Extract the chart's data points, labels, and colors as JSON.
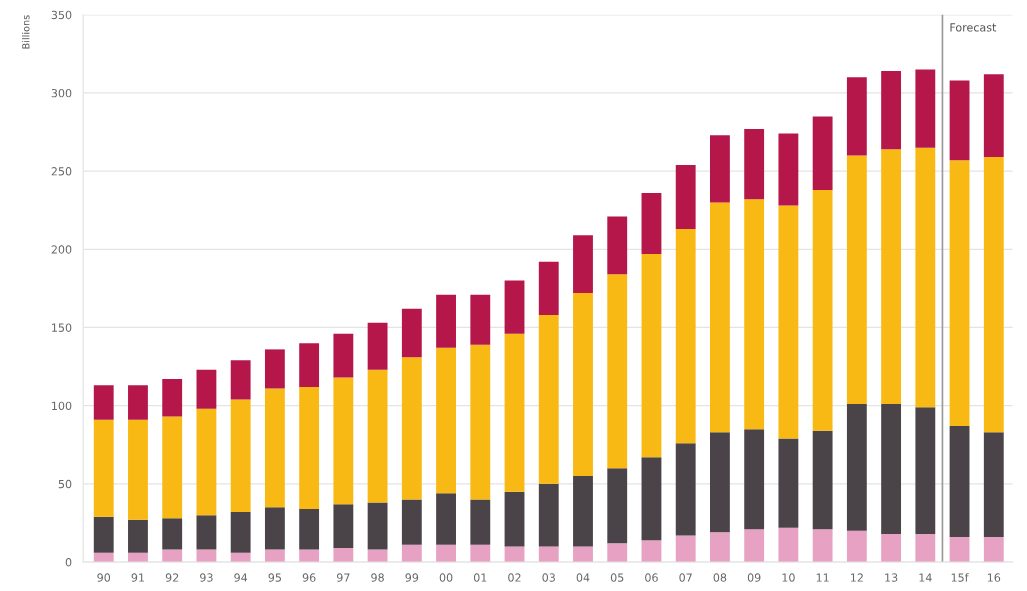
{
  "chart_data": {
    "type": "bar",
    "stacked": true,
    "ylabel": "Billions",
    "categories": [
      "90",
      "91",
      "92",
      "93",
      "94",
      "95",
      "96",
      "97",
      "98",
      "99",
      "00",
      "01",
      "02",
      "03",
      "04",
      "05",
      "06",
      "07",
      "08",
      "09",
      "10",
      "11",
      "12",
      "13",
      "14",
      "15f",
      "16"
    ],
    "series": [
      {
        "color": "#e6a1c3",
        "values": [
          6,
          6,
          8,
          8,
          6,
          8,
          8,
          9,
          8,
          11,
          11,
          11,
          10,
          10,
          10,
          12,
          14,
          17,
          19,
          21,
          22,
          21,
          20,
          18,
          18,
          16,
          16
        ]
      },
      {
        "color": "#4a4448",
        "values": [
          23,
          21,
          20,
          22,
          26,
          27,
          26,
          28,
          30,
          29,
          33,
          29,
          35,
          40,
          45,
          48,
          53,
          59,
          64,
          64,
          57,
          63,
          81,
          83,
          81,
          71,
          67
        ]
      },
      {
        "color": "#f9b914",
        "values": [
          62,
          64,
          65,
          68,
          72,
          76,
          78,
          81,
          85,
          91,
          93,
          99,
          101,
          108,
          117,
          124,
          130,
          137,
          147,
          147,
          149,
          154,
          159,
          163,
          166,
          170,
          176
        ]
      },
      {
        "color": "#b5174a",
        "values": [
          22,
          22,
          24,
          25,
          25,
          25,
          28,
          28,
          30,
          31,
          34,
          32,
          34,
          34,
          37,
          37,
          39,
          41,
          43,
          45,
          46,
          47,
          50,
          50,
          50,
          51,
          53
        ]
      }
    ],
    "ylim": [
      0,
      350
    ],
    "yticks": [
      0,
      50,
      100,
      150,
      200,
      250,
      300,
      350
    ],
    "grid": "y",
    "ref_lines": [
      {
        "axis": "x",
        "value": "15f",
        "label": "Forecast",
        "color": "#9a9a9a"
      }
    ]
  }
}
